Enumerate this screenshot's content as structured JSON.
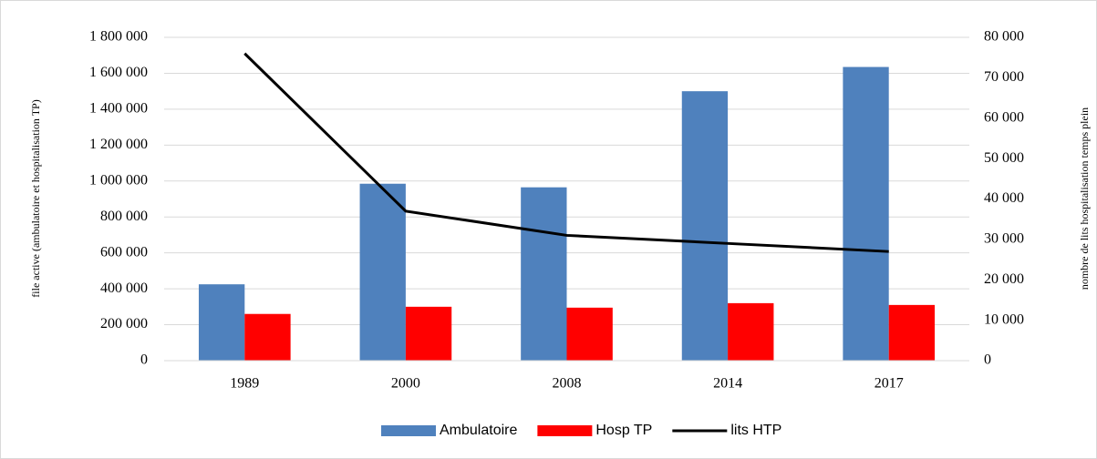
{
  "chart_data": {
    "type": "bar-line",
    "categories": [
      "1989",
      "2000",
      "2008",
      "2014",
      "2017"
    ],
    "y_label": "file active (ambulatoire et hospitalisation TP)",
    "y2_label": "nombre de lits hospitalisation temps plein",
    "series": [
      {
        "name": "Ambulatoire",
        "color": "#4f81bd",
        "type": "bar",
        "values": [
          425000,
          985000,
          965000,
          1500000,
          1635000
        ]
      },
      {
        "name": "Hosp TP",
        "color": "#ff0000",
        "type": "bar",
        "values": [
          260000,
          300000,
          295000,
          320000,
          310000
        ]
      },
      {
        "name": "lits HTP",
        "color": "#000000",
        "type": "line",
        "axis": "y2",
        "values": [
          76000,
          37000,
          31000,
          29000,
          27000
        ]
      }
    ],
    "ylim": [
      0,
      1800000
    ],
    "yticks": [
      0,
      {
        "value": 200000,
        "label": "200 000"
      },
      {
        "value": 400000,
        "label": "400 000"
      },
      {
        "value": 600000,
        "label": "600 000"
      },
      {
        "value": 800000,
        "label": "800 000"
      },
      {
        "value": 1000000,
        "label": "1 000 000"
      },
      {
        "value": 1200000,
        "label": "1 200 000"
      },
      {
        "value": 1400000,
        "label": "1 400 000"
      },
      {
        "value": 1600000,
        "label": "1 600 000"
      },
      {
        "value": 1800000,
        "label": "1 800 000"
      }
    ],
    "y2lim": [
      0,
      80000
    ],
    "y2ticks": [
      0,
      {
        "value": 10000,
        "label": "10 000"
      },
      {
        "value": 20000,
        "label": "20 000"
      },
      {
        "value": 30000,
        "label": "30 000"
      },
      {
        "value": 40000,
        "label": "40 000"
      },
      {
        "value": 50000,
        "label": "50 000"
      },
      {
        "value": 60000,
        "label": "60 000"
      },
      {
        "value": 70000,
        "label": "70 000"
      },
      {
        "value": 80000,
        "label": "80 000"
      }
    ],
    "grid": true,
    "legend": "bottom"
  }
}
